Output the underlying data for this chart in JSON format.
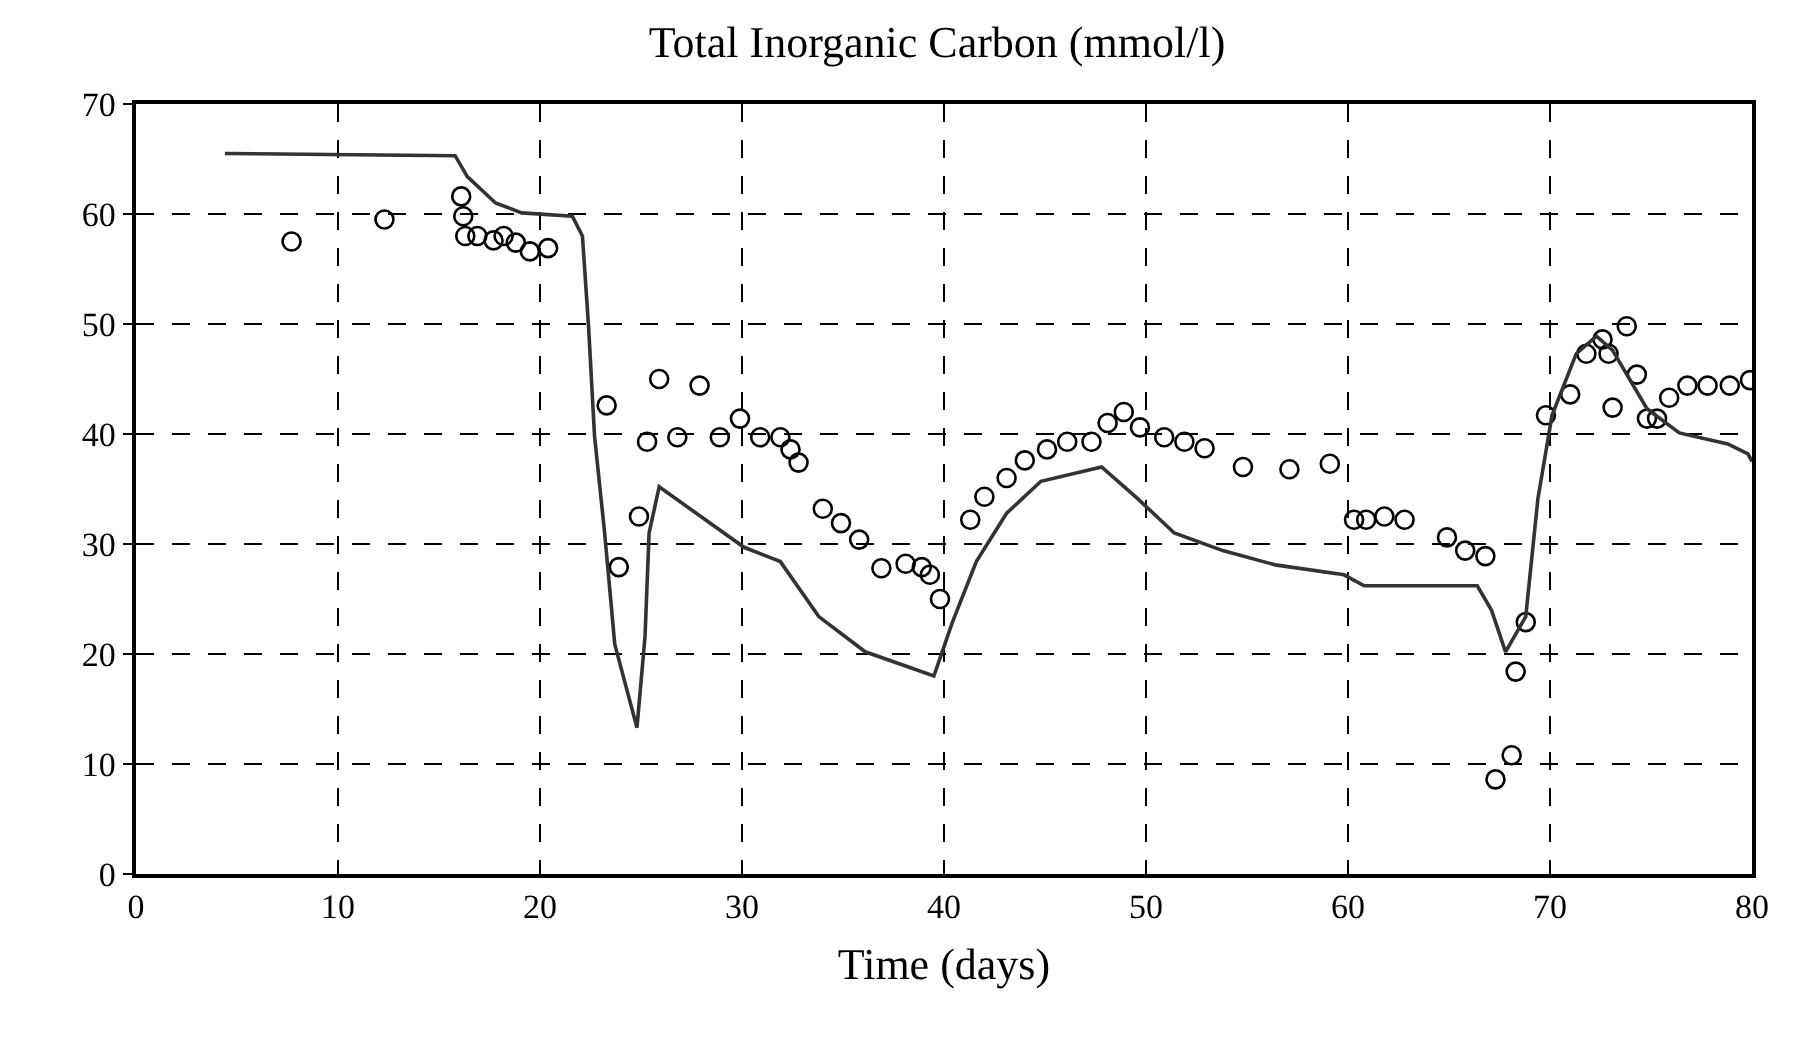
{
  "chart_data": {
    "type": "scatter",
    "title": "Total Inorganic Carbon (mmol/l)",
    "xlabel": "Time (days)",
    "xlim": [
      0,
      80
    ],
    "xticks": [
      0,
      10,
      20,
      30,
      40,
      50,
      60,
      70,
      80
    ],
    "ylim": [
      0,
      70
    ],
    "yticks": [
      0,
      10,
      20,
      30,
      40,
      50,
      60,
      70
    ],
    "grid": true,
    "legend": false,
    "series": [
      {
        "marker": "circle",
        "color": "#000000",
        "x": [
          7.7,
          12.3,
          16.1,
          16.2,
          16.3,
          16.9,
          17.7,
          18.2,
          18.8,
          19.5,
          20.4,
          23.3,
          23.9,
          24.9,
          25.3,
          25.9,
          26.8,
          27.9,
          28.9,
          29.9,
          30.9,
          31.9,
          32.4,
          32.8,
          34.0,
          34.9,
          35.8,
          36.9,
          38.1,
          38.9,
          39.3,
          39.8,
          41.3,
          42.0,
          43.1,
          44.0,
          45.1,
          46.1,
          47.3,
          48.1,
          48.9,
          49.7,
          50.9,
          51.9,
          52.9,
          54.8,
          57.1,
          59.1,
          60.3,
          60.9,
          61.8,
          62.8,
          64.9,
          65.8,
          66.8,
          67.3,
          68.1,
          68.3,
          68.8,
          69.8,
          71.0,
          71.8,
          72.6,
          72.9,
          73.1,
          73.8,
          74.3,
          74.8,
          75.3,
          75.9,
          76.8,
          77.8,
          78.9,
          79.9
        ],
        "values": [
          57.5,
          59.5,
          61.6,
          59.8,
          58,
          58,
          57.6,
          58,
          57.4,
          56.6,
          56.9,
          42.6,
          27.9,
          32.5,
          39.3,
          45.0,
          39.7,
          44.4,
          39.7,
          41.4,
          39.7,
          39.7,
          38.6,
          37.4,
          33.2,
          31.9,
          30.4,
          27.8,
          28.2,
          27.9,
          27.2,
          25.0,
          32.2,
          34.3,
          36.0,
          37.6,
          38.6,
          39.3,
          39.3,
          41.0,
          42.0,
          40.6,
          39.7,
          39.3,
          38.7,
          37.0,
          36.8,
          37.3,
          32.2,
          32.2,
          32.5,
          32.2,
          30.6,
          29.4,
          28.9,
          8.6,
          10.8,
          18.4,
          22.9,
          41.7,
          43.6,
          47.3,
          48.6,
          47.3,
          42.4,
          49.8,
          45.4,
          41.4,
          41.4,
          43.3,
          44.4,
          44.4,
          44.4,
          44.9
        ]
      },
      {
        "type": "line",
        "marker": "none",
        "color": "#333333",
        "x": [
          4.4,
          15.8,
          16.4,
          17.8,
          19.1,
          21.6,
          22.1,
          22.4,
          22.7,
          23.2,
          23.7,
          24.8,
          25.2,
          25.4,
          25.9,
          30.1,
          31.9,
          33.8,
          36.1,
          39.5,
          40.4,
          41.6,
          43.1,
          44.8,
          47.8,
          49.6,
          51.4,
          53.8,
          56.4,
          59.8,
          60.8,
          66.4,
          67.1,
          67.8,
          68.8,
          69.4,
          70.1,
          71.3,
          72.3,
          73.1,
          74.8,
          76.4,
          78.8,
          79.8,
          80
        ],
        "values": [
          65.5,
          65.3,
          63.4,
          61,
          60.1,
          59.8,
          58,
          49.9,
          39.8,
          31,
          20.9,
          13.3,
          21.6,
          31,
          35.2,
          29.7,
          28.4,
          23.4,
          20.2,
          18.0,
          22.8,
          28.4,
          32.8,
          35.7,
          37.0,
          34.1,
          31,
          29.4,
          28.1,
          27.2,
          26.2,
          26.2,
          24.0,
          20.2,
          23.4,
          34.1,
          41.7,
          47.3,
          48.9,
          47.6,
          42.3,
          40.1,
          39.1,
          38.2,
          37.5
        ]
      }
    ]
  }
}
